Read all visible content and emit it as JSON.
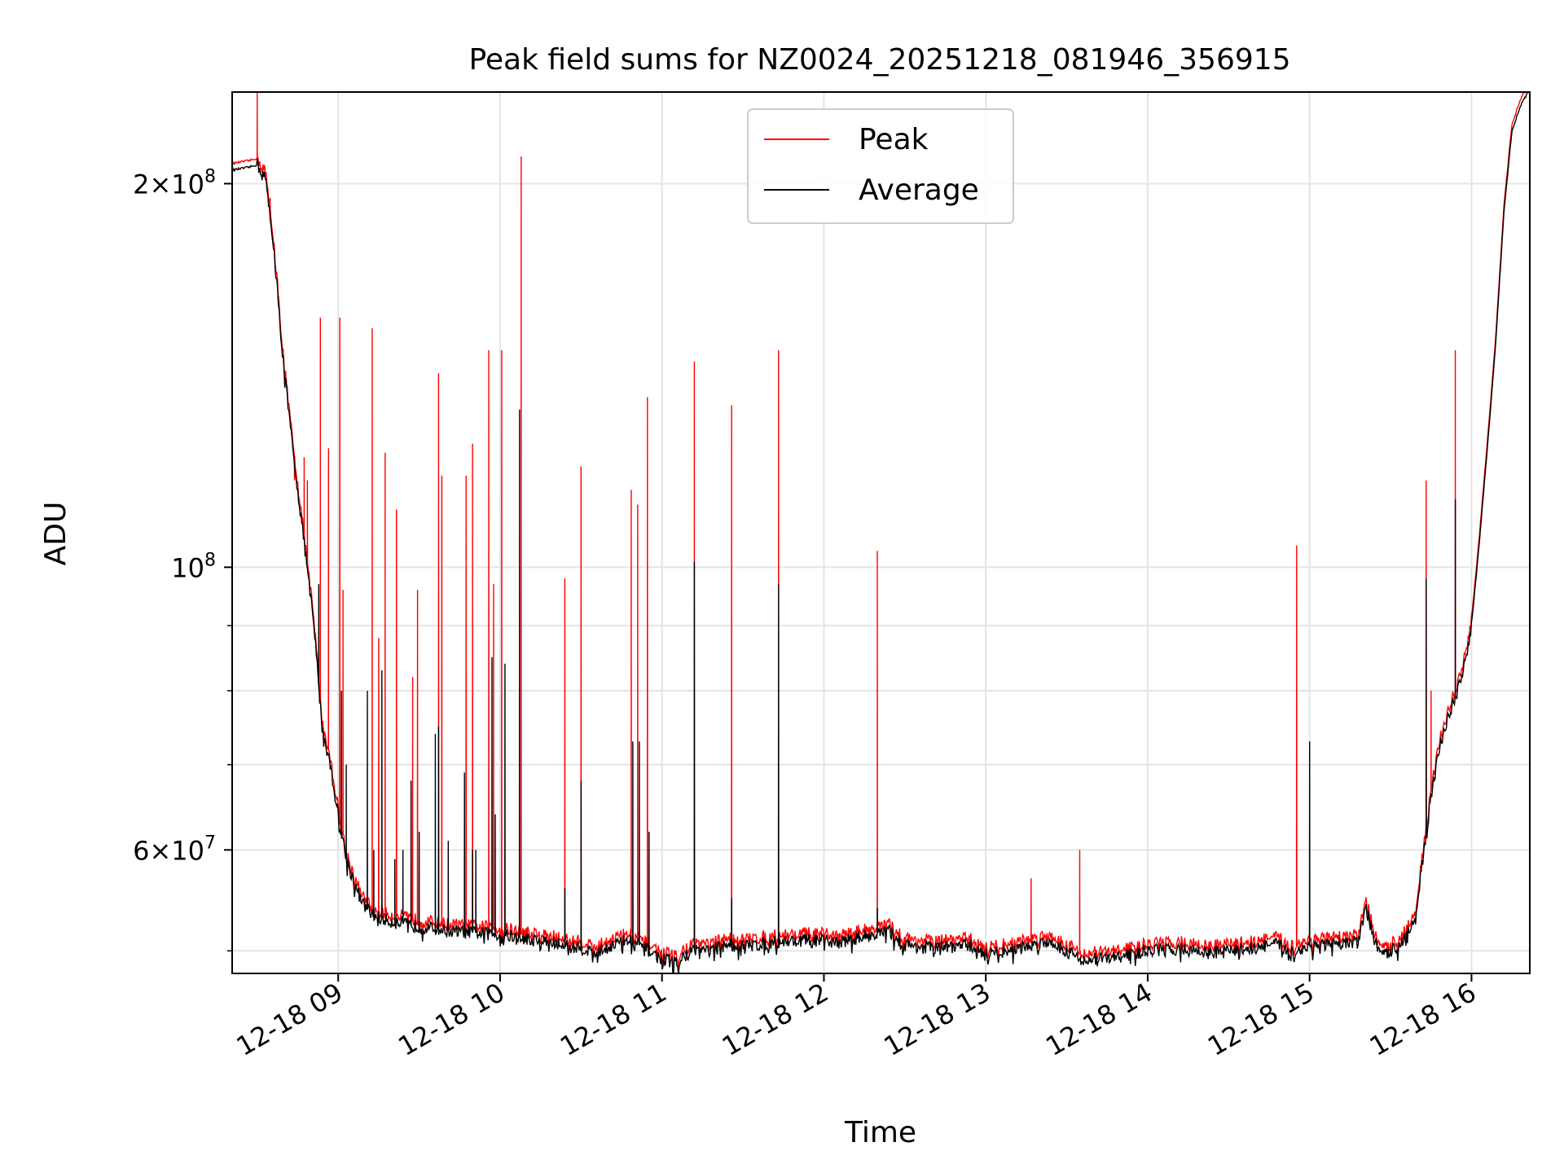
{
  "chart_data": {
    "type": "line",
    "title": "Peak field sums for NZ0024_20251218_081946_356915",
    "xlabel": "Time",
    "ylabel": "ADU",
    "yscale": "log",
    "xlim": [
      8.345,
      16.36
    ],
    "ylim": [
      48000000,
      236000000
    ],
    "grid": true,
    "legend": {
      "position": "top-center",
      "entries": [
        "Peak",
        "Average"
      ]
    },
    "x_ticks": [
      {
        "value": 9,
        "label": "12-18 09"
      },
      {
        "value": 10,
        "label": "12-18 10"
      },
      {
        "value": 11,
        "label": "12-18 11"
      },
      {
        "value": 12,
        "label": "12-18 12"
      },
      {
        "value": 13,
        "label": "12-18 13"
      },
      {
        "value": 14,
        "label": "12-18 14"
      },
      {
        "value": 15,
        "label": "12-18 15"
      },
      {
        "value": 16,
        "label": "12-18 16"
      }
    ],
    "y_major_ticks": [
      {
        "value": 60000000,
        "mantissa": "6",
        "exponent": "7"
      },
      {
        "value": 100000000,
        "mantissa": "",
        "exponent": "8"
      },
      {
        "value": 200000000,
        "mantissa": "2",
        "exponent": "8"
      }
    ],
    "y_minor_ticks": [
      50000000,
      70000000,
      80000000,
      90000000
    ],
    "series": [
      {
        "name": "Average",
        "color": "#000000",
        "baseline": [
          [
            8.35,
            205000000
          ],
          [
            8.45,
            206000000
          ],
          [
            8.5,
            207000000
          ],
          [
            8.55,
            202000000
          ],
          [
            8.6,
            180000000
          ],
          [
            8.65,
            150000000
          ],
          [
            8.7,
            130000000
          ],
          [
            8.75,
            115000000
          ],
          [
            8.8,
            102000000
          ],
          [
            8.85,
            90000000
          ],
          [
            8.9,
            75000000
          ],
          [
            8.95,
            70000000
          ],
          [
            9.0,
            64000000
          ],
          [
            9.05,
            59000000
          ],
          [
            9.1,
            56500000
          ],
          [
            9.15,
            54500000
          ],
          [
            9.2,
            53500000
          ],
          [
            9.3,
            52800000
          ],
          [
            9.5,
            52200000
          ],
          [
            9.7,
            51800000
          ],
          [
            10.0,
            51500000
          ],
          [
            10.3,
            50800000
          ],
          [
            10.5,
            50200000
          ],
          [
            10.6,
            49800000
          ],
          [
            10.7,
            50600000
          ],
          [
            10.8,
            51000000
          ],
          [
            10.9,
            50200000
          ],
          [
            11.0,
            49200000
          ],
          [
            11.1,
            49000000
          ],
          [
            11.2,
            50200000
          ],
          [
            11.3,
            50000000
          ],
          [
            11.4,
            50600000
          ],
          [
            11.5,
            50400000
          ],
          [
            11.7,
            50800000
          ],
          [
            11.9,
            51000000
          ],
          [
            12.1,
            50800000
          ],
          [
            12.3,
            51500000
          ],
          [
            12.4,
            51800000
          ],
          [
            12.5,
            50500000
          ],
          [
            12.7,
            50300000
          ],
          [
            12.9,
            50500000
          ],
          [
            13.0,
            49700000
          ],
          [
            13.2,
            50200000
          ],
          [
            13.4,
            50900000
          ],
          [
            13.5,
            50000000
          ],
          [
            13.6,
            49200000
          ],
          [
            13.8,
            49400000
          ],
          [
            14.0,
            50000000
          ],
          [
            14.2,
            50200000
          ],
          [
            14.4,
            49800000
          ],
          [
            14.6,
            50200000
          ],
          [
            14.8,
            50600000
          ],
          [
            14.9,
            49800000
          ],
          [
            15.0,
            50500000
          ],
          [
            15.2,
            50600000
          ],
          [
            15.3,
            51000000
          ],
          [
            15.35,
            54000000
          ],
          [
            15.4,
            51000000
          ],
          [
            15.45,
            49500000
          ],
          [
            15.55,
            50500000
          ],
          [
            15.62,
            52000000
          ],
          [
            15.66,
            54000000
          ],
          [
            15.7,
            59000000
          ],
          [
            15.75,
            66000000
          ],
          [
            15.8,
            72000000
          ],
          [
            15.85,
            76000000
          ],
          [
            15.9,
            79000000
          ],
          [
            15.95,
            83000000
          ],
          [
            16.0,
            90000000
          ],
          [
            16.05,
            105000000
          ],
          [
            16.1,
            125000000
          ],
          [
            16.15,
            150000000
          ],
          [
            16.2,
            190000000
          ],
          [
            16.25,
            220000000
          ],
          [
            16.3,
            230000000
          ],
          [
            16.35,
            236000000
          ]
        ],
        "spikes": [
          [
            8.88,
            97000000
          ],
          [
            8.95,
            70000000
          ],
          [
            9.02,
            80000000
          ],
          [
            9.05,
            70000000
          ],
          [
            9.18,
            80000000
          ],
          [
            9.22,
            60000000
          ],
          [
            9.27,
            83000000
          ],
          [
            9.35,
            59000000
          ],
          [
            9.4,
            60000000
          ],
          [
            9.45,
            68000000
          ],
          [
            9.5,
            62000000
          ],
          [
            9.6,
            74000000
          ],
          [
            9.62,
            75000000
          ],
          [
            9.68,
            61000000
          ],
          [
            9.78,
            69000000
          ],
          [
            9.83,
            60000000
          ],
          [
            9.85,
            60000000
          ],
          [
            9.95,
            85000000
          ],
          [
            9.97,
            64000000
          ],
          [
            10.03,
            84000000
          ],
          [
            10.12,
            133000000
          ],
          [
            10.4,
            56000000
          ],
          [
            10.5,
            68000000
          ],
          [
            10.82,
            73000000
          ],
          [
            10.86,
            73000000
          ],
          [
            10.92,
            62000000
          ],
          [
            11.2,
            101000000
          ],
          [
            11.43,
            55000000
          ],
          [
            11.72,
            97000000
          ],
          [
            12.33,
            54000000
          ],
          [
            15.0,
            73000000
          ],
          [
            15.72,
            98000000
          ],
          [
            15.9,
            113000000
          ]
        ]
      },
      {
        "name": "Peak",
        "color": "#ff0000",
        "baseline_offset": 1.012,
        "spikes": [
          [
            8.5,
            236000000
          ],
          [
            8.58,
            195000000
          ],
          [
            8.63,
            162000000
          ],
          [
            8.68,
            140000000
          ],
          [
            8.73,
            117000000
          ],
          [
            8.79,
            122000000
          ],
          [
            8.81,
            117000000
          ],
          [
            8.89,
            157000000
          ],
          [
            8.94,
            124000000
          ],
          [
            9.01,
            157000000
          ],
          [
            9.03,
            96000000
          ],
          [
            9.21,
            154000000
          ],
          [
            9.25,
            88000000
          ],
          [
            9.29,
            123000000
          ],
          [
            9.36,
            111000000
          ],
          [
            9.46,
            82000000
          ],
          [
            9.49,
            96000000
          ],
          [
            9.62,
            142000000
          ],
          [
            9.64,
            118000000
          ],
          [
            9.79,
            118000000
          ],
          [
            9.83,
            125000000
          ],
          [
            9.93,
            148000000
          ],
          [
            9.96,
            97000000
          ],
          [
            10.01,
            148000000
          ],
          [
            10.13,
            210000000
          ],
          [
            10.4,
            98000000
          ],
          [
            10.5,
            120000000
          ],
          [
            10.81,
            115000000
          ],
          [
            10.85,
            112000000
          ],
          [
            10.91,
            136000000
          ],
          [
            11.2,
            145000000
          ],
          [
            11.43,
            134000000
          ],
          [
            11.72,
            148000000
          ],
          [
            12.33,
            103000000
          ],
          [
            13.28,
            57000000
          ],
          [
            13.58,
            60000000
          ],
          [
            14.92,
            104000000
          ],
          [
            15.72,
            117000000
          ],
          [
            15.75,
            80000000
          ],
          [
            15.9,
            148000000
          ]
        ]
      }
    ]
  }
}
